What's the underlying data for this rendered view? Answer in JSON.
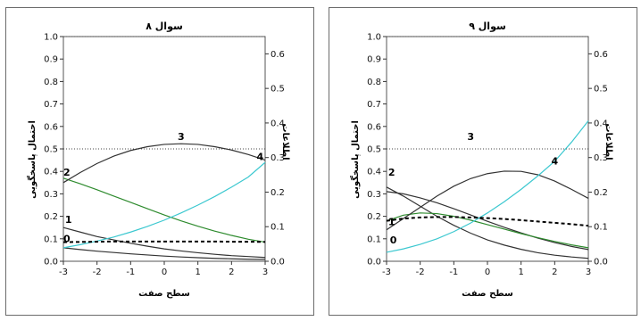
{
  "chart_data": [
    {
      "type": "line",
      "title": "سوال ۸",
      "xlabel": "سطح صفت",
      "ylabel": "احتمال پاسخگویی",
      "y2label": "اطلاعات",
      "xlim": [
        -3,
        3
      ],
      "ylim": [
        0,
        1.0
      ],
      "y2lim": [
        0,
        0.65
      ],
      "x_ticks": [
        -3,
        -2,
        -1,
        0,
        1,
        2,
        3
      ],
      "y_ticks": [
        0.0,
        0.1,
        0.2,
        0.3,
        0.4,
        0.5,
        0.6,
        0.7,
        0.8,
        0.9,
        1.0
      ],
      "y2_ticks": [
        0.0,
        0.1,
        0.2,
        0.3,
        0.4,
        0.5,
        0.6
      ],
      "reference_lines": [
        0.5,
        1.0
      ],
      "grid": false,
      "x": [
        -3,
        -2.5,
        -2,
        -1.5,
        -1,
        -0.5,
        0,
        0.5,
        1,
        1.5,
        2,
        2.5,
        3
      ],
      "series": [
        {
          "name": "0",
          "color": "#333333",
          "values": [
            0.06,
            0.052,
            0.045,
            0.039,
            0.033,
            0.028,
            0.023,
            0.019,
            0.016,
            0.013,
            0.011,
            0.009,
            0.008
          ]
        },
        {
          "name": "1",
          "color": "#333333",
          "values": [
            0.15,
            0.13,
            0.11,
            0.095,
            0.08,
            0.067,
            0.055,
            0.046,
            0.038,
            0.031,
            0.025,
            0.021,
            0.017
          ]
        },
        {
          "name": "2",
          "color": "#2e8b2e",
          "values": [
            0.37,
            0.345,
            0.318,
            0.29,
            0.262,
            0.234,
            0.206,
            0.18,
            0.156,
            0.134,
            0.115,
            0.098,
            0.085
          ]
        },
        {
          "name": "3",
          "color": "#333333",
          "values": [
            0.35,
            0.395,
            0.435,
            0.468,
            0.493,
            0.51,
            0.52,
            0.523,
            0.52,
            0.51,
            0.495,
            0.475,
            0.45
          ]
        },
        {
          "name": "4",
          "color": "#3cc8d0",
          "values": [
            0.06,
            0.074,
            0.09,
            0.108,
            0.13,
            0.155,
            0.183,
            0.215,
            0.25,
            0.288,
            0.33,
            0.375,
            0.44
          ]
        },
        {
          "name": "",
          "color": "#000000",
          "dashed": true,
          "values": [
            0.085,
            0.086,
            0.087,
            0.088,
            0.088,
            0.088,
            0.088,
            0.088,
            0.088,
            0.088,
            0.087,
            0.087,
            0.086
          ]
        }
      ]
    },
    {
      "type": "line",
      "title": "سوال ۹",
      "xlabel": "سطح صفت",
      "ylabel": "احتمال پاسخگویی",
      "y2label": "اطلاعات",
      "xlim": [
        -3,
        3
      ],
      "ylim": [
        0,
        1.0
      ],
      "y2lim": [
        0,
        0.65
      ],
      "x_ticks": [
        -3,
        -2,
        -1,
        0,
        1,
        2,
        3
      ],
      "y_ticks": [
        0.0,
        0.1,
        0.2,
        0.3,
        0.4,
        0.5,
        0.6,
        0.7,
        0.8,
        0.9,
        1.0
      ],
      "y2_ticks": [
        0.0,
        0.1,
        0.2,
        0.3,
        0.4,
        0.5,
        0.6
      ],
      "reference_lines": [
        0.5,
        1.0
      ],
      "grid": false,
      "x": [
        -3,
        -2.5,
        -2,
        -1.5,
        -1,
        -0.5,
        0,
        0.5,
        1,
        1.5,
        2,
        2.5,
        3
      ],
      "series": [
        {
          "name": "0",
          "color": "#333333",
          "values": [
            0.33,
            0.29,
            0.245,
            0.2,
            0.16,
            0.125,
            0.095,
            0.072,
            0.053,
            0.038,
            0.027,
            0.019,
            0.013
          ]
        },
        {
          "name": "1",
          "color": "#333333",
          "values": [
            0.31,
            0.3,
            0.282,
            0.26,
            0.234,
            0.206,
            0.178,
            0.151,
            0.126,
            0.103,
            0.083,
            0.066,
            0.052
          ]
        },
        {
          "name": "2",
          "color": "#2e8b2e",
          "values": [
            0.18,
            0.205,
            0.215,
            0.212,
            0.2,
            0.183,
            0.163,
            0.143,
            0.123,
            0.105,
            0.088,
            0.073,
            0.06
          ]
        },
        {
          "name": "3",
          "color": "#333333",
          "values": [
            0.14,
            0.19,
            0.24,
            0.29,
            0.334,
            0.368,
            0.39,
            0.401,
            0.4,
            0.385,
            0.357,
            0.32,
            0.28
          ]
        },
        {
          "name": "4",
          "color": "#3cc8d0",
          "values": [
            0.04,
            0.055,
            0.075,
            0.1,
            0.132,
            0.17,
            0.215,
            0.265,
            0.32,
            0.38,
            0.445,
            0.53,
            0.625
          ]
        },
        {
          "name": "",
          "color": "#000000",
          "dashed": true,
          "values": [
            0.18,
            0.19,
            0.195,
            0.197,
            0.197,
            0.195,
            0.192,
            0.188,
            0.183,
            0.177,
            0.171,
            0.165,
            0.158
          ]
        }
      ]
    }
  ]
}
